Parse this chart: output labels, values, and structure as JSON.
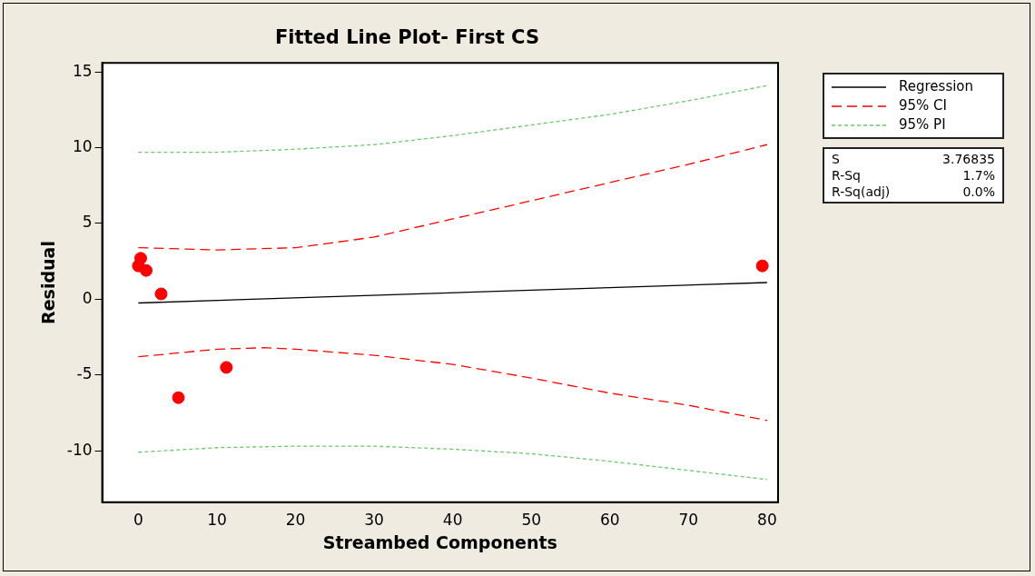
{
  "chart_data": {
    "type": "scatter",
    "title": "Fitted Line Plot- First CS",
    "xlabel": "Streambed Components",
    "ylabel": "Residual",
    "xlim": [
      -4.6,
      81.4
    ],
    "ylim": [
      -13.4,
      15.6
    ],
    "xticks": [
      0,
      10,
      20,
      30,
      40,
      50,
      60,
      70,
      80
    ],
    "yticks": [
      -10,
      -5,
      0,
      5,
      10,
      15
    ],
    "grid": false,
    "legend": "top right",
    "series": [
      {
        "color": "#ff0000",
        "marker": "circle",
        "x": [
          0,
          0.3,
          1,
          2.9,
          5.1,
          11.2,
          79.4
        ],
        "values": [
          2.2,
          2.7,
          1.9,
          0.35,
          -6.5,
          -4.5,
          2.2
        ]
      },
      {
        "type": "line",
        "name": "Regression",
        "color": "#000000",
        "line_style": "solid",
        "marker": "none",
        "x": [
          0,
          80
        ],
        "values": [
          -0.25,
          1.1
        ]
      },
      {
        "type": "line",
        "name": "95% CI",
        "color": "#ff0000",
        "line_style": "dashed",
        "marker": "none",
        "x": [
          0,
          10,
          20,
          30,
          40,
          50,
          60,
          70,
          80
        ],
        "values": [
          3.4,
          3.25,
          3.4,
          4.1,
          5.3,
          6.5,
          7.7,
          8.9,
          10.2
        ]
      },
      {
        "type": "line",
        "color": "#ff0000",
        "line_style": "dashed",
        "marker": "none",
        "x": [
          0,
          10,
          16,
          20,
          30,
          40,
          50,
          60,
          70,
          80
        ],
        "values": [
          -3.8,
          -3.3,
          -3.2,
          -3.3,
          -3.7,
          -4.3,
          -5.2,
          -6.2,
          -7.0,
          -8.0
        ]
      },
      {
        "type": "line",
        "name": "95% PI",
        "color": "#66cc66",
        "line_style": "dotted",
        "marker": "none",
        "x": [
          0,
          10,
          20,
          30,
          40,
          50,
          60,
          70,
          80
        ],
        "values": [
          9.7,
          9.7,
          9.9,
          10.2,
          10.8,
          11.5,
          12.2,
          13.1,
          14.1
        ]
      },
      {
        "type": "line",
        "color": "#66cc66",
        "line_style": "dotted",
        "marker": "none",
        "x": [
          0,
          10,
          20,
          30,
          40,
          50,
          60,
          70,
          80
        ],
        "values": [
          -10.1,
          -9.8,
          -9.7,
          -9.7,
          -9.9,
          -10.2,
          -10.7,
          -11.3,
          -11.9
        ]
      }
    ],
    "annotations": [
      "S",
      "3.76835",
      "R-Sq",
      "1.7%",
      "R-Sq(adj)",
      "0.0%"
    ]
  }
}
